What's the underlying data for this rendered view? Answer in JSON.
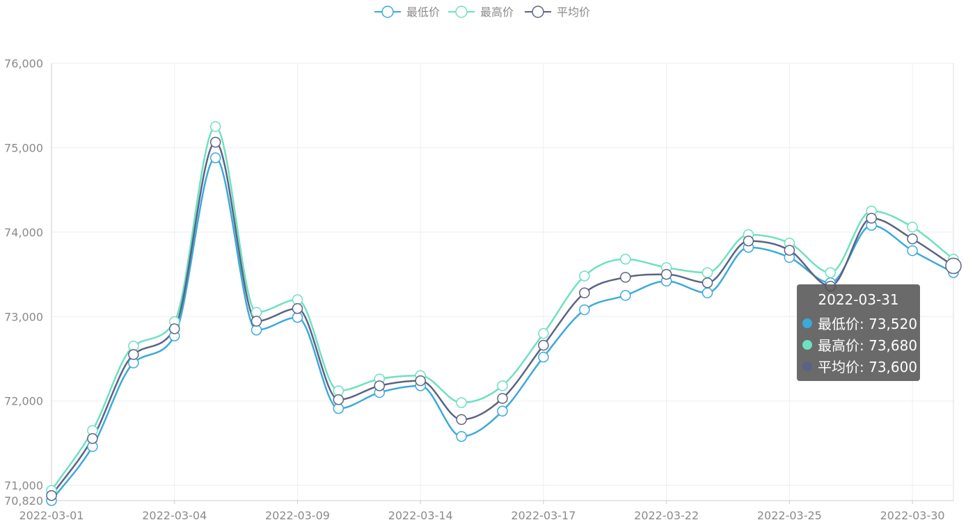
{
  "chart_data": {
    "type": "line",
    "smooth": true,
    "title": "",
    "xlabel": "",
    "ylabel": "",
    "ylim": [
      70820,
      76000
    ],
    "yticks": [
      70820,
      71000,
      72000,
      73000,
      74000,
      75000,
      76000
    ],
    "ytick_labels": [
      "70,820",
      "71,000",
      "72,000",
      "73,000",
      "74,000",
      "75,000",
      "76,000"
    ],
    "x": [
      "2022-03-01",
      "2022-03-02",
      "2022-03-03",
      "2022-03-04",
      "2022-03-05",
      "2022-03-07",
      "2022-03-09",
      "2022-03-10",
      "2022-03-11",
      "2022-03-14",
      "2022-03-15",
      "2022-03-16",
      "2022-03-17",
      "2022-03-18",
      "2022-03-21",
      "2022-03-22",
      "2022-03-23",
      "2022-03-24",
      "2022-03-25",
      "2022-03-28",
      "2022-03-29",
      "2022-03-30",
      "2022-03-31"
    ],
    "xtick_labels": [
      "2022-03-01",
      "2022-03-04",
      "2022-03-09",
      "2022-03-14",
      "2022-03-17",
      "2022-03-22",
      "2022-03-25",
      "2022-03-30"
    ],
    "grid": true,
    "legend_position": "top-center",
    "series": [
      {
        "name": "最低价",
        "color": "#3ba9dc",
        "values": [
          70820,
          71460,
          72450,
          72770,
          74880,
          72840,
          72990,
          71910,
          72100,
          72180,
          71580,
          71880,
          72520,
          73080,
          73250,
          73420,
          73280,
          73820,
          73700,
          73400,
          74080,
          73780,
          73520
        ]
      },
      {
        "name": "最高价",
        "color": "#6fe0c0",
        "values": [
          70940,
          71650,
          72650,
          72940,
          75250,
          73050,
          73200,
          72120,
          72260,
          72300,
          71980,
          72180,
          72800,
          73480,
          73680,
          73580,
          73520,
          73970,
          73870,
          73520,
          74250,
          74060,
          73680
        ]
      },
      {
        "name": "平均价",
        "color": "#5a6383",
        "values": [
          70880,
          71555,
          72550,
          72855,
          75065,
          72945,
          73095,
          72015,
          72180,
          72240,
          71780,
          72030,
          72660,
          73280,
          73465,
          73500,
          73400,
          73895,
          73785,
          73360,
          74165,
          73920,
          73600
        ]
      }
    ]
  },
  "legend": {
    "items": [
      "最低价",
      "最高价",
      "平均价"
    ]
  },
  "tooltip": {
    "title": "2022-03-31",
    "rows": [
      {
        "label": "最低价: 73,520",
        "color": "#3ba9dc"
      },
      {
        "label": "最高价: 73,680",
        "color": "#6fe0c0"
      },
      {
        "label": "平均价: 73,600",
        "color": "#5a6383"
      }
    ]
  }
}
